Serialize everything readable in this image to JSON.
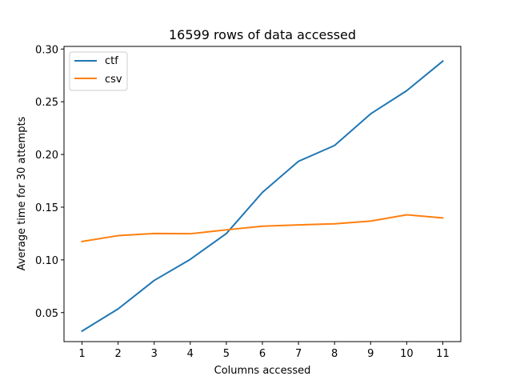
{
  "chart_data": {
    "type": "line",
    "title": "16599 rows of data accessed",
    "xlabel": "Columns accessed",
    "ylabel": "Average time for 30 attempts",
    "x": [
      1,
      2,
      3,
      4,
      5,
      6,
      7,
      8,
      9,
      10,
      11
    ],
    "xticks": [
      1,
      2,
      3,
      4,
      5,
      6,
      7,
      8,
      9,
      10,
      11
    ],
    "yticks": [
      0.05,
      0.1,
      0.15,
      0.2,
      0.25,
      0.3
    ],
    "ytick_labels": [
      "0.05",
      "0.10",
      "0.15",
      "0.20",
      "0.25",
      "0.30"
    ],
    "xlim": [
      0.5,
      11.5
    ],
    "ylim": [
      0.0225,
      0.3025
    ],
    "grid": false,
    "legend_position": "top-left",
    "series": [
      {
        "name": "ctf",
        "color": "#1f77b4",
        "values": [
          0.0325,
          0.0535,
          0.0805,
          0.1005,
          0.125,
          0.164,
          0.1935,
          0.2085,
          0.2385,
          0.2605,
          0.2885
        ]
      },
      {
        "name": "csv",
        "color": "#ff7f0e",
        "values": [
          0.1175,
          0.123,
          0.125,
          0.1248,
          0.1285,
          0.132,
          0.1332,
          0.1342,
          0.1368,
          0.1428,
          0.1398
        ]
      }
    ]
  }
}
